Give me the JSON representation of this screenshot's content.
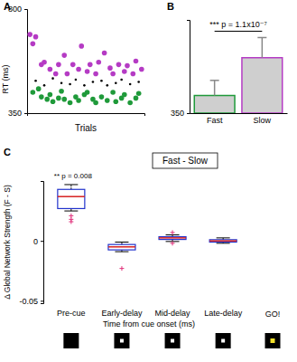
{
  "chart_data": [
    {
      "type": "scatter",
      "panel": "A",
      "ylabel": "RT (ms)",
      "xlabel": "Trials",
      "xlim": [
        0,
        41
      ],
      "ylim": [
        350,
        800
      ],
      "yticks": [
        350,
        800
      ],
      "tick_labels": "y",
      "series": [
        {
          "color": "#b53bc4",
          "marker": "circle",
          "x": [
            1,
            2,
            3,
            5,
            6,
            8,
            10,
            11,
            13,
            14,
            16,
            18,
            19,
            21,
            22,
            24,
            25,
            27,
            29,
            30,
            32,
            34,
            35,
            37,
            38,
            40
          ],
          "values": [
            690,
            650,
            680,
            560,
            570,
            540,
            520,
            560,
            600,
            520,
            560,
            540,
            640,
            530,
            560,
            520,
            570,
            610,
            545,
            520,
            560,
            530,
            555,
            520,
            575,
            540
          ]
        },
        {
          "color": "#1f9a3a",
          "marker": "circle",
          "x": [
            2,
            4,
            5,
            7,
            8,
            9,
            11,
            12,
            13,
            15,
            17,
            18,
            20,
            21,
            23,
            24,
            26,
            28,
            30,
            31,
            33,
            34,
            36,
            38,
            39
          ],
          "values": [
            440,
            455,
            420,
            410,
            430,
            400,
            415,
            445,
            410,
            395,
            420,
            405,
            430,
            440,
            410,
            395,
            420,
            405,
            440,
            400,
            415,
            430,
            395,
            415,
            435
          ]
        },
        {
          "color": "#000000",
          "marker": "point",
          "x": [
            3,
            6,
            9,
            12,
            15,
            17,
            20,
            23,
            26,
            28,
            31,
            33,
            36,
            39
          ],
          "values": [
            490,
            470,
            500,
            480,
            475,
            495,
            470,
            485,
            490,
            470,
            480,
            495,
            475,
            485
          ]
        }
      ]
    },
    {
      "type": "bar",
      "panel": "B",
      "categories": [
        "Fast",
        "Slow"
      ],
      "values": [
        420,
        570
      ],
      "errors": [
        60,
        80
      ],
      "colors": [
        "#1f9a3a",
        "#b53bc4"
      ],
      "ylim": [
        350,
        720
      ],
      "yticks": [
        350
      ],
      "annotations": [
        "*** p = 1.1x10⁻⁷"
      ]
    },
    {
      "type": "box",
      "panel": "C",
      "title": "Fast - Slow",
      "ylabel": "Δ Global Network Strength (F - S)",
      "xlabel": "Time from cue onset (ms)",
      "categories": [
        "Pre-cue",
        "Early-delay",
        "Mid-delay",
        "Late-delay"
      ],
      "color": "#2233cc",
      "boxes": [
        {
          "whisker_low": 0.025,
          "q1": 0.027,
          "median": 0.037,
          "q3": 0.043,
          "whisker_high": 0.047,
          "outliers": [
            0.021,
            0.018,
            0.016
          ]
        },
        {
          "whisker_low": -0.009,
          "q1": -0.0075,
          "median": -0.005,
          "q3": -0.003,
          "whisker_high": -0.001,
          "outliers": [
            -0.023
          ]
        },
        {
          "whisker_low": -0.0005,
          "q1": 0.0012,
          "median": 0.0025,
          "q3": 0.0035,
          "whisker_high": 0.005,
          "outliers": [
            0.007,
            -0.002
          ]
        },
        {
          "whisker_low": -0.002,
          "q1": -0.001,
          "median": 0,
          "q3": 0.001,
          "whisker_high": 0.0025,
          "outliers": []
        }
      ],
      "ylim": [
        -0.052,
        0.05
      ],
      "yticks": [
        -0.05,
        0
      ],
      "annotations": [
        "** p = 0.008",
        "GO!"
      ]
    }
  ]
}
